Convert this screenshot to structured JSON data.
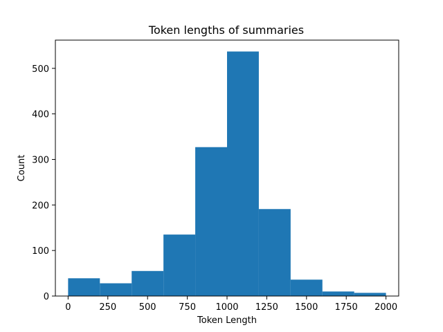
{
  "chart_data": {
    "type": "bar",
    "title": "Token lengths of summaries",
    "xlabel": "Token Length",
    "ylabel": "Count",
    "xlim": [
      -80,
      2080
    ],
    "ylim": [
      0,
      562
    ],
    "x_ticks": [
      0,
      250,
      500,
      750,
      1000,
      1250,
      1500,
      1750,
      2000
    ],
    "y_ticks": [
      0,
      100,
      200,
      300,
      400,
      500
    ],
    "bins": [
      {
        "start": 0,
        "end": 200,
        "count": 39
      },
      {
        "start": 200,
        "end": 400,
        "count": 28
      },
      {
        "start": 400,
        "end": 600,
        "count": 55
      },
      {
        "start": 600,
        "end": 800,
        "count": 135
      },
      {
        "start": 800,
        "end": 1000,
        "count": 327
      },
      {
        "start": 1000,
        "end": 1200,
        "count": 537
      },
      {
        "start": 1200,
        "end": 1400,
        "count": 191
      },
      {
        "start": 1400,
        "end": 1600,
        "count": 36
      },
      {
        "start": 1600,
        "end": 1800,
        "count": 10
      },
      {
        "start": 1800,
        "end": 2000,
        "count": 7
      }
    ],
    "bar_color": "#1f77b4",
    "grid": false,
    "legend": "none"
  }
}
